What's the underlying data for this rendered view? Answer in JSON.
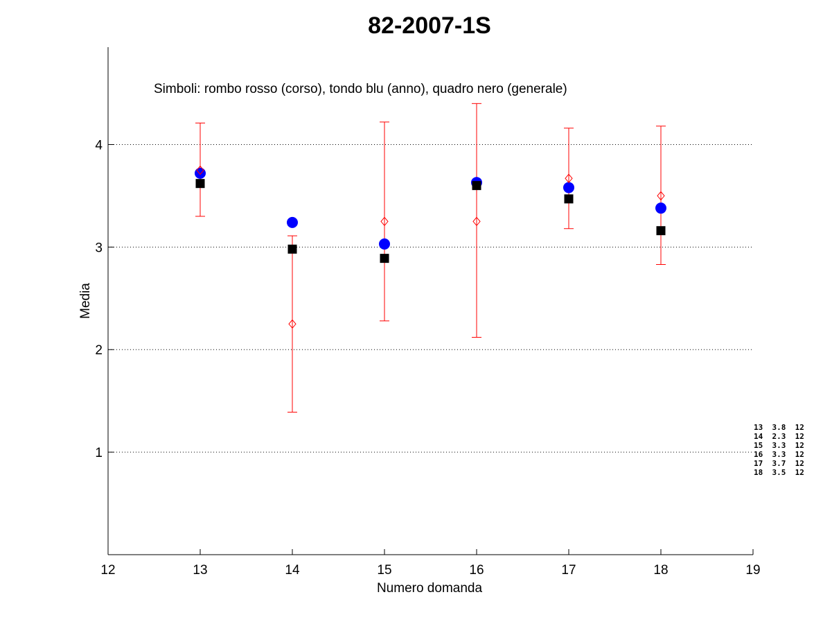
{
  "chart_data": {
    "type": "scatter",
    "title": "82-2007-1S",
    "xlabel": "Numero domanda",
    "ylabel": "Media",
    "xlim": [
      12,
      19
    ],
    "ylim": [
      0,
      4.95
    ],
    "xticks": [
      "12",
      "13",
      "14",
      "15",
      "16",
      "17",
      "18",
      "19"
    ],
    "yticks": [
      "1",
      "2",
      "3",
      "4"
    ],
    "grid": "horizontal dotted",
    "annotation": "Simboli: rombo rosso (corso), tondo blu (anno), quadro nero (generale)",
    "series": [
      {
        "marker": "diamond",
        "color": "#ff0000",
        "x": [
          13,
          14,
          15,
          16,
          17,
          18
        ],
        "values": [
          3.75,
          2.25,
          3.25,
          3.25,
          3.67,
          3.5
        ],
        "error_low": [
          3.3,
          1.39,
          2.28,
          2.12,
          3.18,
          2.83
        ],
        "error_high": [
          4.21,
          3.11,
          4.22,
          4.4,
          4.16,
          4.18
        ]
      },
      {
        "marker": "circle",
        "color": "#0000ff",
        "x": [
          13,
          14,
          15,
          16,
          17,
          18
        ],
        "values": [
          3.72,
          3.24,
          3.03,
          3.63,
          3.58,
          3.38
        ]
      },
      {
        "marker": "square",
        "color": "#000000",
        "x": [
          13,
          14,
          15,
          16,
          17,
          18
        ],
        "values": [
          3.62,
          2.98,
          2.89,
          3.6,
          3.47,
          3.16
        ]
      }
    ],
    "side_table": [
      "13  3.8  12",
      "14  2.3  12",
      "15  3.3  12",
      "16  3.3  12",
      "17  3.7  12",
      "18  3.5  12"
    ]
  }
}
